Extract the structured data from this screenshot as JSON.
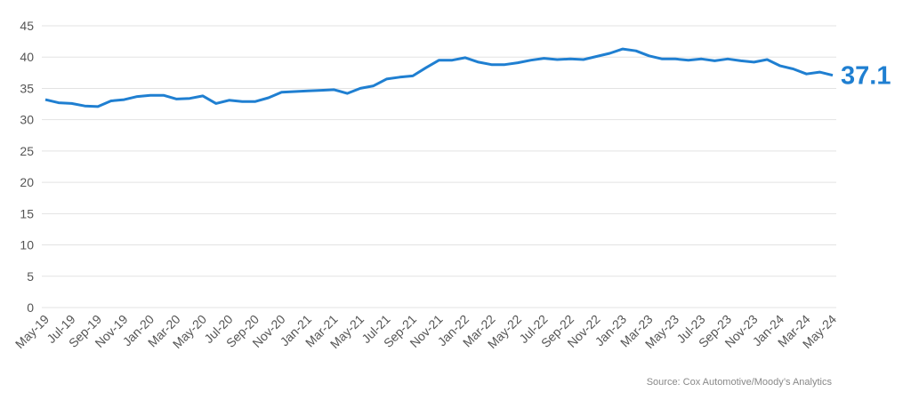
{
  "chart_data": {
    "type": "line",
    "categories": [
      "May-19",
      null,
      "Jul-19",
      null,
      "Sep-19",
      null,
      "Nov-19",
      null,
      "Jan-20",
      null,
      "Mar-20",
      null,
      "May-20",
      null,
      "Jul-20",
      null,
      "Sep-20",
      null,
      "Nov-20",
      null,
      "Jan-21",
      null,
      "Mar-21",
      null,
      "May-21",
      null,
      "Jul-21",
      null,
      "Sep-21",
      null,
      "Nov-21",
      null,
      "Jan-22",
      null,
      "Mar-22",
      null,
      "May-22",
      null,
      "Jul-22",
      null,
      "Sep-22",
      null,
      "Nov-22",
      null,
      "Jan-23",
      null,
      "Mar-23",
      null,
      "May-23",
      null,
      "Jul-23",
      null,
      "Sep-23",
      null,
      "Nov-23",
      null,
      "Jan-24",
      null,
      "Mar-24",
      null,
      "May-24"
    ],
    "values": [
      33.2,
      32.7,
      32.6,
      32.2,
      32.1,
      33.0,
      33.2,
      33.7,
      33.9,
      33.9,
      33.3,
      33.4,
      33.8,
      32.6,
      33.1,
      32.9,
      32.9,
      33.5,
      34.4,
      34.5,
      34.6,
      34.7,
      34.8,
      34.2,
      35.0,
      35.4,
      36.5,
      36.8,
      37.0,
      38.3,
      39.5,
      39.5,
      39.9,
      39.2,
      38.8,
      38.8,
      39.1,
      39.5,
      39.8,
      39.6,
      39.7,
      39.6,
      40.1,
      40.6,
      41.3,
      41.0,
      40.2,
      39.7,
      39.7,
      39.5,
      39.7,
      39.4,
      39.7,
      39.4,
      39.2,
      39.6,
      38.6,
      38.1,
      37.3,
      37.6,
      37.1
    ],
    "color": "#1f7fd1",
    "ylim": [
      0,
      45
    ],
    "yticks": [
      0,
      5,
      10,
      15,
      20,
      25,
      30,
      35,
      40,
      45
    ],
    "grid": true,
    "source": "Source: Cox Automotive/Moody’s Analytics"
  }
}
